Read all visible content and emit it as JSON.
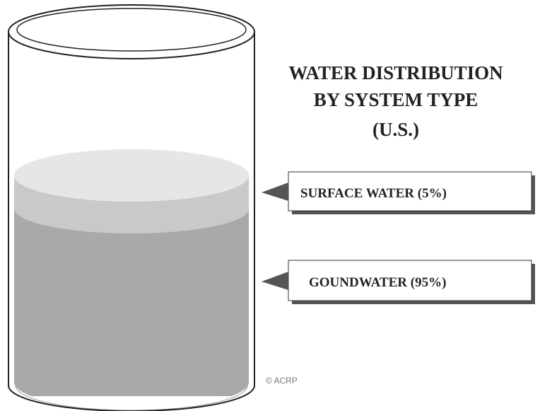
{
  "title": {
    "lines": [
      "WATER DISTRIBUTION",
      "BY SYSTEM TYPE",
      "(U.S.)"
    ]
  },
  "callouts": [
    {
      "label": "SURFACE WATER (5%)"
    },
    {
      "label": "GOUNDWATER (95%)"
    }
  ],
  "credit": "© ACRP"
}
